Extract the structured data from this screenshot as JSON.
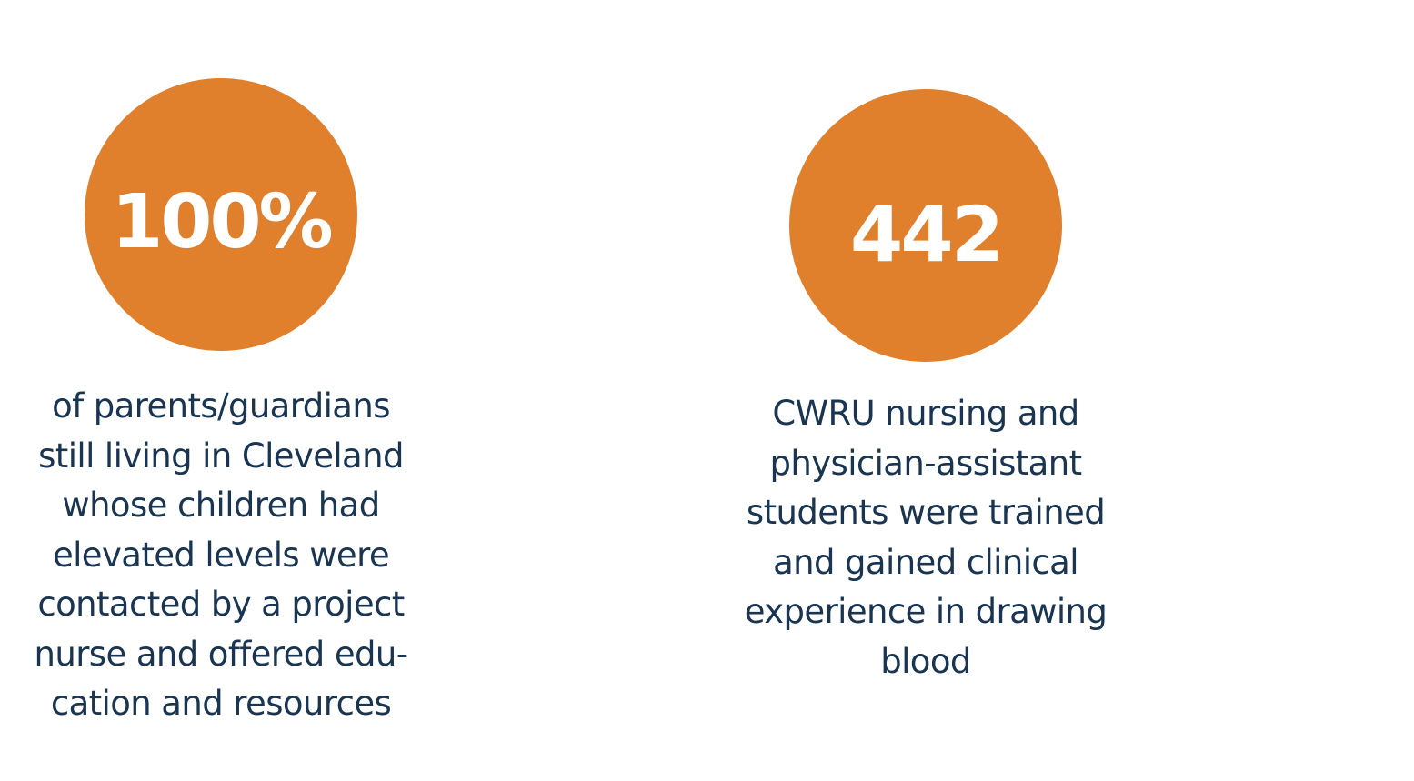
{
  "colors": {
    "circle": "#e07f2c",
    "text": "#1a3552",
    "value": "#ffffff"
  },
  "stats": [
    {
      "value": "100%",
      "description": "of parents/guardians\nstill living in Cleveland\nwhose children had\nelevated levels were\ncontacted by a project\nnurse and offered edu-\ncation and resources"
    },
    {
      "value": "442",
      "description": "CWRU nursing and\nphysician-assistant\nstudents were trained\nand gained clinical\nexperience in drawing\nblood"
    }
  ]
}
